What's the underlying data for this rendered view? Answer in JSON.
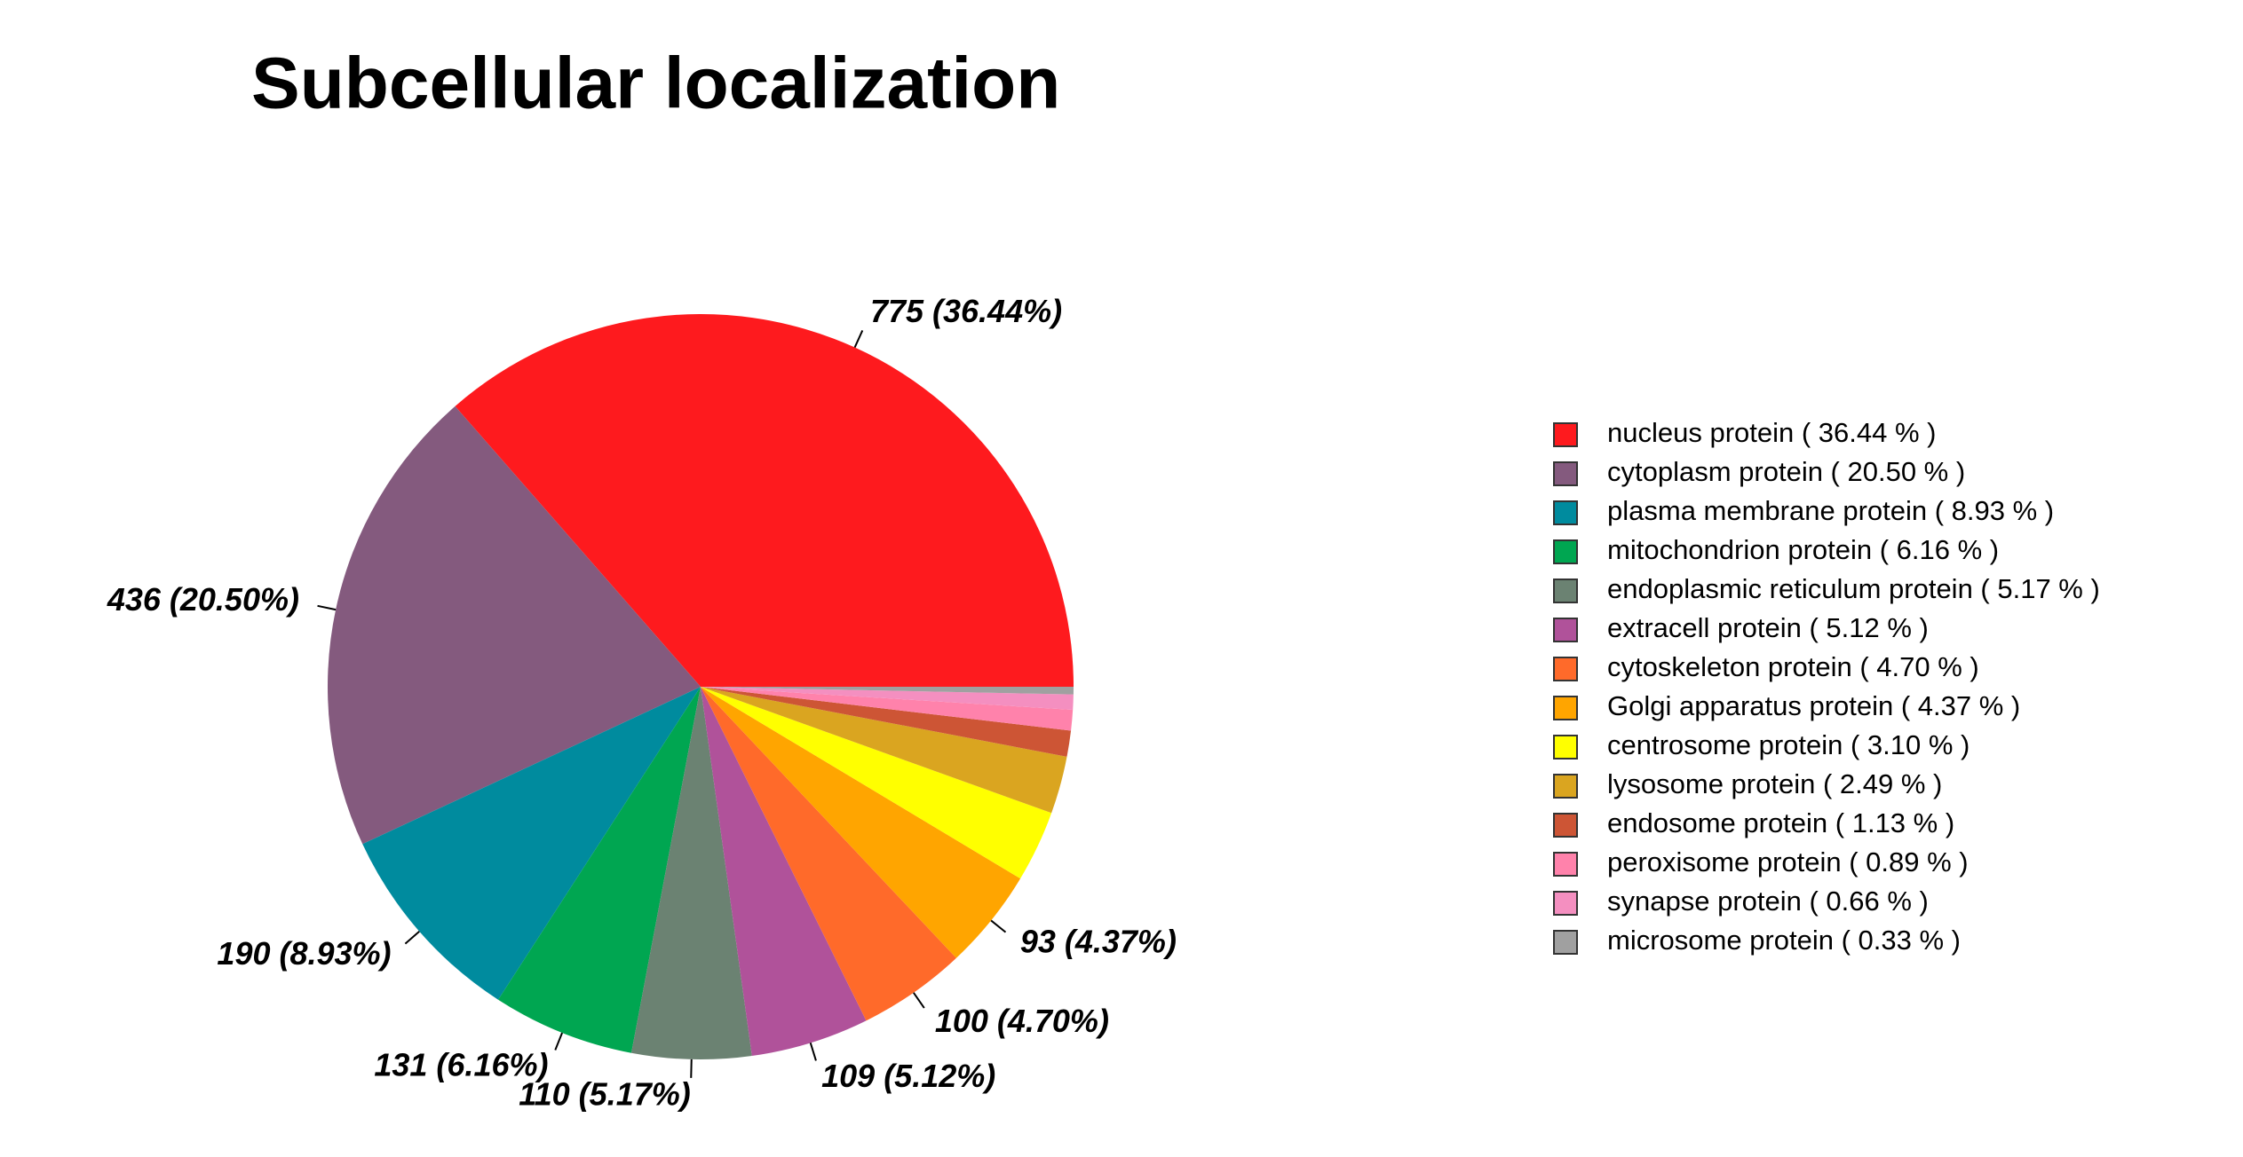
{
  "chart_data": {
    "type": "pie",
    "title": "Subcellular localization",
    "categories": [
      "nucleus protein  ( 36.44 % )",
      "cytoplasm protein  ( 20.50 % )",
      "plasma membrane protein  ( 8.93 % )",
      "mitochondrion protein  ( 6.16 % )",
      "endoplasmic reticulum protein  ( 5.17 % )",
      "extracell protein  ( 5.12 % )",
      "cytoskeleton protein  ( 4.70 % )",
      "Golgi apparatus protein  ( 4.37 % )",
      "centrosome protein  ( 3.10 % )",
      "lysosome protein  ( 2.49 % )",
      "endosome protein  ( 1.13 % )",
      "peroxisome protein  ( 0.89 % )",
      "synapse protein  ( 0.66 % )",
      "microsome protein  ( 0.33 % )"
    ],
    "values": [
      775,
      436,
      190,
      131,
      110,
      109,
      100,
      93,
      66,
      53,
      24,
      19,
      14,
      7
    ],
    "value_labels": [
      "775 (36.44%)",
      "436 (20.50%)",
      "190 (8.93%)",
      "131 (6.16%)",
      "110 (5.17%)",
      "109 (5.12%)",
      "100 (4.70%)",
      "93 (4.37%)",
      null,
      null,
      null,
      null,
      null,
      null
    ],
    "colors": [
      "#fe1a1e",
      "#845a7e",
      "#008b9e",
      "#00a651",
      "#6b8272",
      "#b0529a",
      "#ff6a2a",
      "#ffa500",
      "#ffff00",
      "#daa520",
      "#cd5535",
      "#ff82ab",
      "#f48fc0",
      "#a0a0a0"
    ],
    "legend": "right"
  }
}
